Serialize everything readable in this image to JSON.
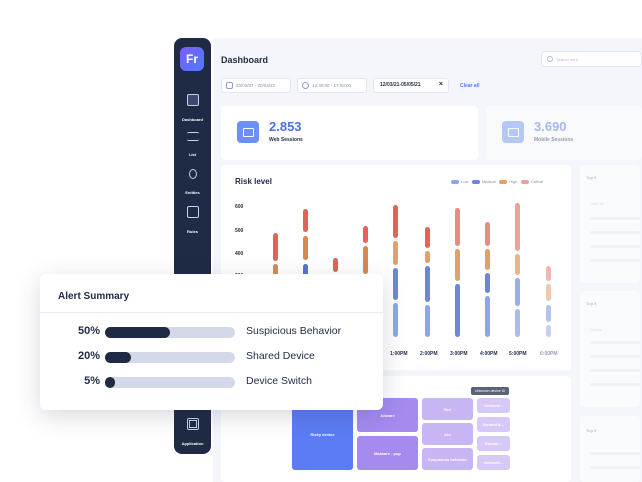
{
  "sidebar": {
    "logo": "Fr",
    "items": [
      {
        "label": "Dashboard",
        "icon": "gauge-icon"
      },
      {
        "label": "List",
        "icon": "list-icon"
      },
      {
        "label": "Entities",
        "icon": "branch-icon"
      },
      {
        "label": "Rules",
        "icon": "rules-icon"
      },
      {
        "label": "Application",
        "icon": "grid-icon"
      }
    ]
  },
  "header": {
    "title": "Dashboard",
    "search_placeholder": "Search here"
  },
  "filters": {
    "date_range": "20/03/07 - 20/03/22",
    "time_range": "12:30:00 - 17:00:00",
    "applied": "12/03/21-05/05/21",
    "clear_label": "Clear all"
  },
  "kpis": [
    {
      "value": "2.853",
      "label": "Web Sessions",
      "icon": "monitor-icon"
    },
    {
      "value": "3.690",
      "label": "Mobile Sessions",
      "icon": "mobile-icon"
    }
  ],
  "risk_chart": {
    "title": "Risk level",
    "legend": [
      "Low",
      "Medium",
      "High",
      "Critical"
    ],
    "colors": {
      "low": "#8ea6e8",
      "medium": "#6f86d6",
      "high": "#e0a06a",
      "critical": "#e5625b"
    },
    "y_ticks": [
      "600",
      "500",
      "400",
      "300"
    ],
    "x_ticks": [
      "1:00PM",
      "2:00PM",
      "3:00PM",
      "4:00PM",
      "5:00PM",
      "6:00PM"
    ]
  },
  "side_cards": {
    "top1_title": "Top 5",
    "top1_sub": "User ID",
    "top2_title": "Top 5",
    "top2_sub": "Device",
    "top3_title": "Top 5"
  },
  "treemap": {
    "tooltip": "Unknown device ID",
    "cells": [
      "Risky device",
      "Adware",
      "Malware - pup",
      "Bot",
      "Ato",
      "Suspicious behavior",
      "Unknow...",
      "Rooted d...",
      "Emulat...",
      "Network..."
    ]
  },
  "alert_summary": {
    "title": "Alert Summary",
    "rows": [
      {
        "pct": "50%",
        "value": 0.5,
        "name": "Suspicious Behavior"
      },
      {
        "pct": "20%",
        "value": 0.2,
        "name": "Shared Device"
      },
      {
        "pct": "5%",
        "value": 0.05,
        "name": "Device Switch"
      }
    ]
  }
}
